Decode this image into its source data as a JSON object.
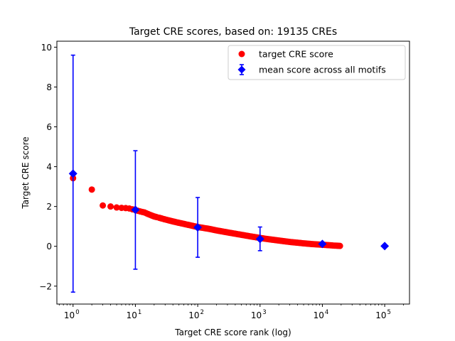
{
  "chart_data": {
    "type": "scatter",
    "title": "Target CRE scores, based on: 19135 CREs",
    "xlabel": "Target CRE score rank (log)",
    "ylabel": "Target CRE score",
    "xscale": "log",
    "xlim": [
      0.55,
      250000
    ],
    "ylim": [
      -2.9,
      10.3
    ],
    "x_ticks": [
      {
        "value": 1,
        "mantissa": "10",
        "exponent": "0"
      },
      {
        "value": 10,
        "mantissa": "10",
        "exponent": "1"
      },
      {
        "value": 100,
        "mantissa": "10",
        "exponent": "2"
      },
      {
        "value": 1000,
        "mantissa": "10",
        "exponent": "3"
      },
      {
        "value": 10000,
        "mantissa": "10",
        "exponent": "4"
      },
      {
        "value": 100000,
        "mantissa": "10",
        "exponent": "5"
      }
    ],
    "y_ticks": [
      {
        "value": -2,
        "label": "−2"
      },
      {
        "value": 0,
        "label": "0"
      },
      {
        "value": 2,
        "label": "2"
      },
      {
        "value": 4,
        "label": "4"
      },
      {
        "value": 6,
        "label": "6"
      },
      {
        "value": 8,
        "label": "8"
      },
      {
        "value": 10,
        "label": "10"
      }
    ],
    "grid": false,
    "legend_position": "upper right",
    "series": [
      {
        "name": "target CRE score",
        "kind": "scatter",
        "color": "#ff0000",
        "marker": "circle",
        "profile": {
          "x": [
            1,
            2,
            3,
            4,
            5,
            6,
            7,
            8,
            10,
            12,
            14,
            16,
            20,
            25,
            30,
            40,
            50,
            70,
            100,
            150,
            200,
            300,
            500,
            700,
            1000,
            1500,
            2000,
            3000,
            5000,
            7000,
            10000,
            15000,
            19135
          ],
          "y": [
            3.42,
            2.85,
            2.05,
            2.0,
            1.95,
            1.93,
            1.92,
            1.9,
            1.82,
            1.75,
            1.7,
            1.62,
            1.5,
            1.42,
            1.35,
            1.25,
            1.18,
            1.08,
            0.97,
            0.88,
            0.8,
            0.7,
            0.58,
            0.5,
            0.42,
            0.34,
            0.29,
            0.22,
            0.15,
            0.11,
            0.08,
            0.04,
            0.02
          ]
        }
      },
      {
        "name": "mean score across all motifs",
        "kind": "errorbar",
        "color": "#0000ff",
        "marker": "diamond",
        "x": [
          1,
          10,
          100,
          1000,
          10000,
          100000
        ],
        "y": [
          3.65,
          1.83,
          0.95,
          0.37,
          0.12,
          0.01
        ],
        "yerr_low": [
          -2.3,
          -1.15,
          -0.55,
          -0.22,
          0.12,
          0.01
        ],
        "yerr_high": [
          9.6,
          4.8,
          2.45,
          0.97,
          0.12,
          0.01
        ]
      }
    ]
  }
}
